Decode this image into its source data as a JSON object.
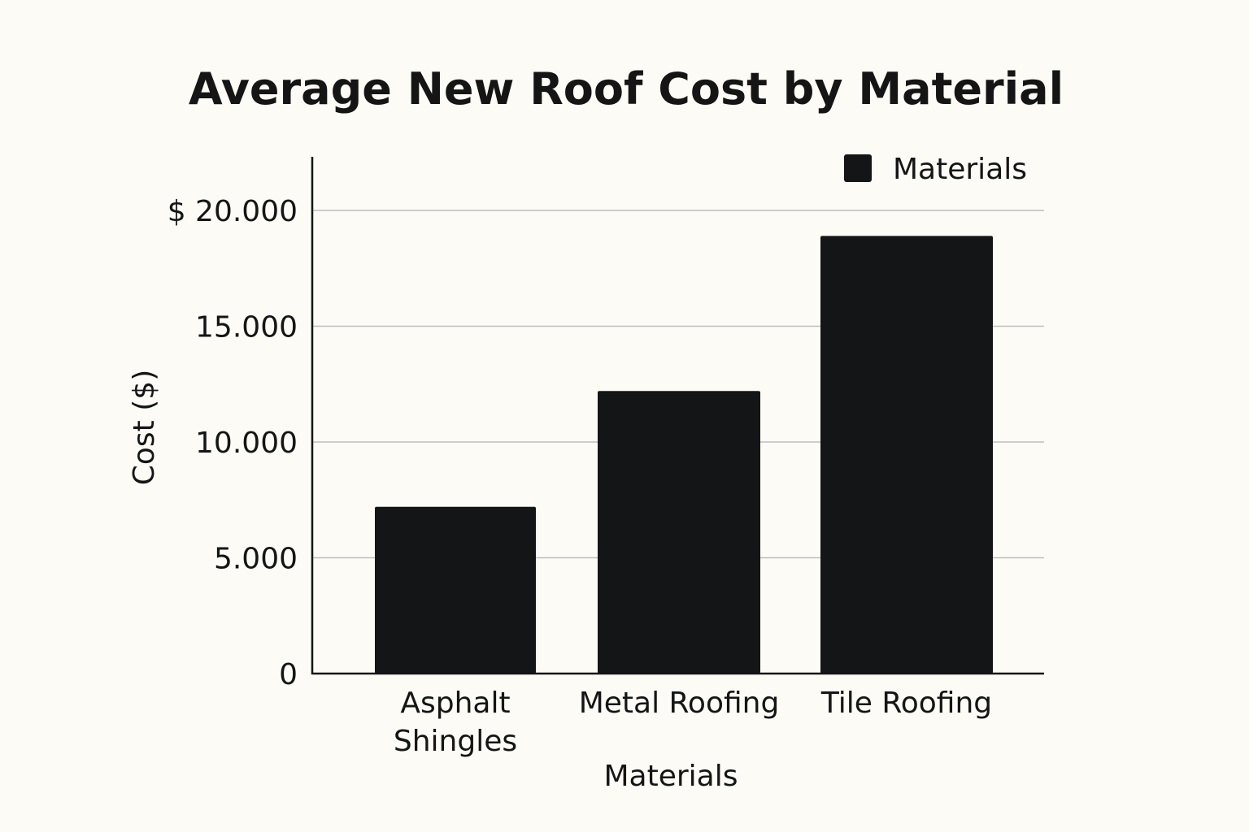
{
  "chart_data": {
    "type": "bar",
    "title": "Average New Roof Cost by Material",
    "xlabel": "Materials",
    "ylabel": "Cost ($)",
    "categories": [
      [
        "Asphalt",
        "Shingles"
      ],
      [
        "Metal Roofing"
      ],
      [
        "Tile Roofing"
      ]
    ],
    "series": [
      {
        "name": "Materials",
        "values": [
          7200,
          12200,
          18900
        ],
        "color": "#141517"
      }
    ],
    "yticks": [
      0,
      5000,
      10000,
      15000,
      20000
    ],
    "ytick_labels": [
      "0",
      "5.000",
      "10.000",
      "15.000",
      "$ 20.000"
    ],
    "ylim": [
      0,
      22300
    ],
    "grid": true,
    "legend": "top-right",
    "background": "#fcfbf6",
    "grid_color": "#bdbdbd"
  }
}
